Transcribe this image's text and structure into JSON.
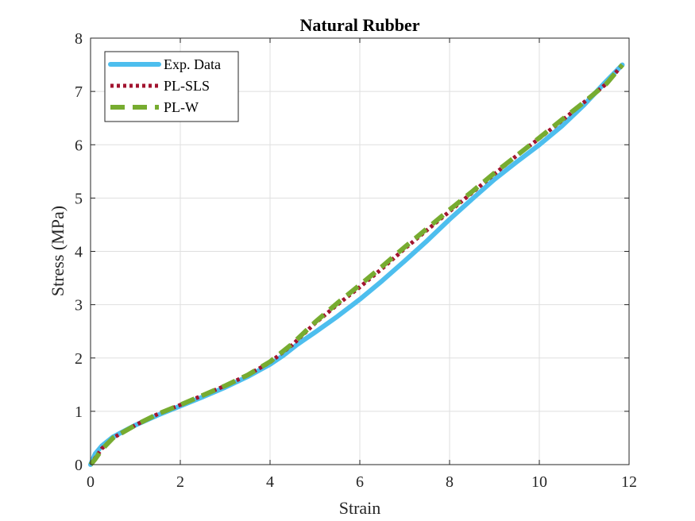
{
  "chart_data": {
    "type": "line",
    "title": "Natural Rubber",
    "xlabel": "Strain",
    "ylabel": "Stress (MPa)",
    "xlim": [
      0,
      12
    ],
    "ylim": [
      0,
      8
    ],
    "xticks": [
      0,
      2,
      4,
      6,
      8,
      10,
      12
    ],
    "yticks": [
      0,
      1,
      2,
      3,
      4,
      5,
      6,
      7,
      8
    ],
    "grid": true,
    "legend_position": "top-left",
    "series": [
      {
        "name": "Exp. Data",
        "color": "#4DBEEE",
        "style": "solid",
        "x": [
          0,
          0.1,
          0.25,
          0.5,
          0.75,
          1.0,
          1.5,
          2.0,
          2.5,
          3.0,
          3.5,
          4.0,
          4.3,
          4.6,
          5.0,
          5.5,
          6.0,
          6.5,
          7.0,
          7.5,
          8.0,
          8.5,
          9.0,
          9.5,
          10.0,
          10.5,
          11.0,
          11.5,
          11.85
        ],
        "y": [
          0,
          0.2,
          0.35,
          0.52,
          0.63,
          0.74,
          0.93,
          1.1,
          1.27,
          1.45,
          1.65,
          1.88,
          2.05,
          2.25,
          2.48,
          2.78,
          3.1,
          3.45,
          3.82,
          4.2,
          4.6,
          4.98,
          5.35,
          5.68,
          6.0,
          6.35,
          6.75,
          7.2,
          7.5
        ]
      },
      {
        "name": "PL-SLS",
        "color": "#A2142F",
        "style": "dotted",
        "x": [
          0,
          0.1,
          0.25,
          0.5,
          0.75,
          1.0,
          1.5,
          2.0,
          2.5,
          3.0,
          3.5,
          4.0,
          4.5,
          5.0,
          5.5,
          6.0,
          6.5,
          7.0,
          7.5,
          8.0,
          8.5,
          9.0,
          9.5,
          10.0,
          10.5,
          11.0,
          11.5,
          11.85
        ],
        "y": [
          0,
          0.12,
          0.3,
          0.5,
          0.62,
          0.74,
          0.95,
          1.12,
          1.3,
          1.48,
          1.68,
          1.92,
          2.25,
          2.65,
          3.0,
          3.33,
          3.68,
          4.05,
          4.4,
          4.75,
          5.1,
          5.45,
          5.8,
          6.12,
          6.45,
          6.8,
          7.15,
          7.5
        ]
      },
      {
        "name": "PL-W",
        "color": "#77AC30",
        "style": "dashed",
        "x": [
          0,
          0.1,
          0.25,
          0.5,
          0.75,
          1.0,
          1.5,
          2.0,
          2.5,
          3.0,
          3.5,
          4.0,
          4.5,
          5.0,
          5.5,
          6.0,
          6.5,
          7.0,
          7.5,
          8.0,
          8.5,
          9.0,
          9.5,
          10.0,
          10.5,
          11.0,
          11.5,
          11.85
        ],
        "y": [
          0,
          0.1,
          0.28,
          0.5,
          0.62,
          0.74,
          0.95,
          1.12,
          1.3,
          1.48,
          1.68,
          1.93,
          2.27,
          2.67,
          3.03,
          3.37,
          3.72,
          4.08,
          4.43,
          4.78,
          5.12,
          5.47,
          5.8,
          6.13,
          6.47,
          6.8,
          7.15,
          7.5
        ]
      }
    ]
  }
}
